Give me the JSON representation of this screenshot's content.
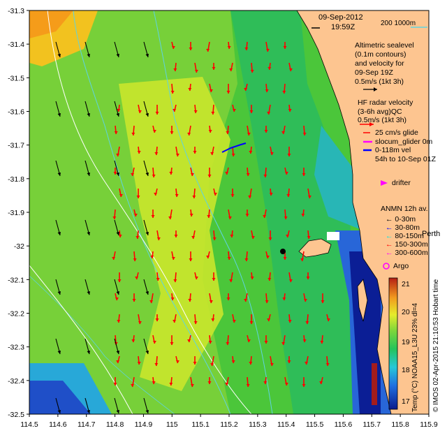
{
  "map": {
    "date": "09-Sep-2012",
    "time": "19:59Z",
    "bathy_scale": "200  1000m",
    "altimetry_text": [
      "Altimetric sealevel",
      "(0.1m contours)",
      "and velocity for",
      "09-Sep 19Z",
      "0.5m/s (1kt 3h)"
    ],
    "hf_radar_text": [
      "HF radar velocity",
      "(3-6h avg)QC",
      "0.5m/s (1kt 3h)"
    ],
    "glider_text": [
      "25 cm/s glide",
      "slocum_glider 0m",
      "0-118m vel",
      "54h to 10-Sep 01Z"
    ],
    "drifter_label": "drifter",
    "anmn_title": "ANMN 12h av.",
    "anmn_items": [
      {
        "label": "0-30m",
        "color": "#000000"
      },
      {
        "label": "30-80m",
        "color": "#0000ff"
      },
      {
        "label": "80-150m",
        "color": "#00e5e5"
      },
      {
        "label": "150-300m",
        "color": "#ff0000"
      },
      {
        "label": "300-600m",
        "color": "#ff00ff"
      }
    ],
    "city_label": "Perth",
    "argo_label": "Argo",
    "colorbar_label": "Temp (°C) NOAA15_L3U 23% dl=4",
    "colorbar_ticks": [
      "17",
      "18",
      "19",
      "20",
      "21"
    ],
    "credit": "© IMOS 02-Apr-2015 21:10:53 Hobart time",
    "x_ticks": [
      "114.5",
      "114.6",
      "114.7",
      "114.8",
      "114.9",
      "115",
      "115.1",
      "115.2",
      "115.3",
      "115.4",
      "115.5",
      "115.6",
      "115.7",
      "115.8",
      "115.9"
    ],
    "y_ticks": [
      "-31.3",
      "-31.4",
      "-31.5",
      "-31.6",
      "-31.7",
      "-31.8",
      "-31.9",
      "-32",
      "-32.1",
      "-32.2",
      "-32.3",
      "-32.4",
      "-32.5"
    ],
    "colors": {
      "land": "#fdc590",
      "radar_arrow": "#ff0000",
      "altimetry_arrow": "#000000",
      "drifter": "#ff00ff",
      "bathy_contour": "#5fd3e0"
    }
  }
}
